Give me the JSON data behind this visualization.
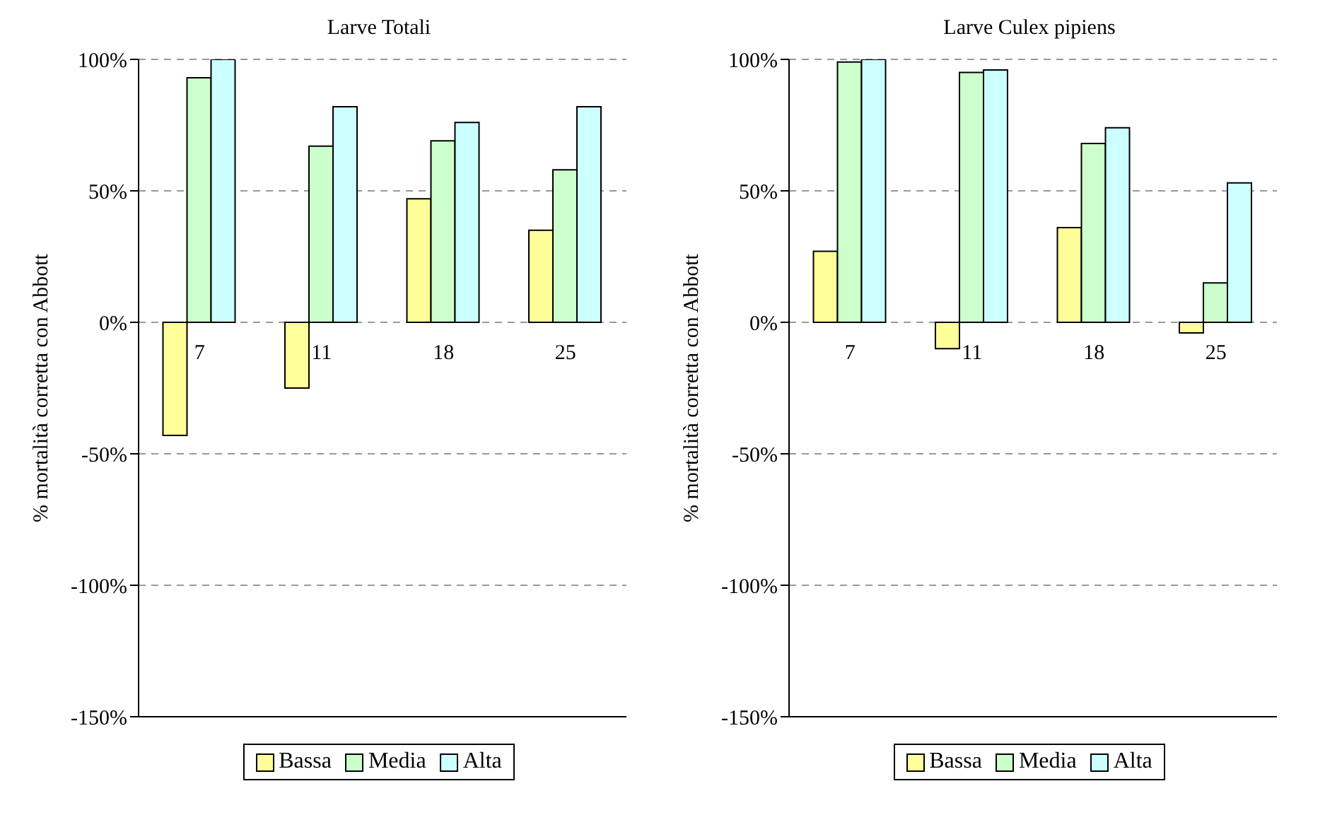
{
  "chart_data": [
    {
      "type": "bar",
      "title": "Larve Totali",
      "ylabel": "% mortalità corretta con Abbott",
      "categories": [
        "7",
        "11",
        "18",
        "25"
      ],
      "series": [
        {
          "name": "Bassa",
          "color": "#ffff99",
          "values": [
            -43,
            -25,
            47,
            35
          ]
        },
        {
          "name": "Media",
          "color": "#ccffcc",
          "values": [
            93,
            67,
            69,
            58
          ]
        },
        {
          "name": "Alta",
          "color": "#ccffff",
          "values": [
            100,
            82,
            76,
            82
          ]
        }
      ],
      "ylim": [
        -150,
        100
      ],
      "yticks": [
        {
          "value": -150,
          "label": "-150%"
        },
        {
          "value": -100,
          "label": "-100%"
        },
        {
          "value": -50,
          "label": "-50%"
        },
        {
          "value": 0,
          "label": "0%"
        },
        {
          "value": 50,
          "label": "50%"
        },
        {
          "value": 100,
          "label": "100%"
        }
      ],
      "grid": "y",
      "legend": "bottom"
    },
    {
      "type": "bar",
      "title": "Larve Culex pipiens",
      "ylabel": "% mortalità corretta con Abbott",
      "categories": [
        "7",
        "11",
        "18",
        "25"
      ],
      "series": [
        {
          "name": "Bassa",
          "color": "#ffff99",
          "values": [
            27,
            -10,
            36,
            -4
          ]
        },
        {
          "name": "Media",
          "color": "#ccffcc",
          "values": [
            99,
            95,
            68,
            15
          ]
        },
        {
          "name": "Alta",
          "color": "#ccffff",
          "values": [
            100,
            96,
            74,
            53
          ]
        }
      ],
      "ylim": [
        -150,
        100
      ],
      "yticks": [
        {
          "value": -150,
          "label": "-150%"
        },
        {
          "value": -100,
          "label": "-100%"
        },
        {
          "value": -50,
          "label": "-50%"
        },
        {
          "value": 0,
          "label": "0%"
        },
        {
          "value": 50,
          "label": "50%"
        },
        {
          "value": 100,
          "label": "100%"
        }
      ],
      "grid": "y",
      "legend": "bottom"
    }
  ]
}
